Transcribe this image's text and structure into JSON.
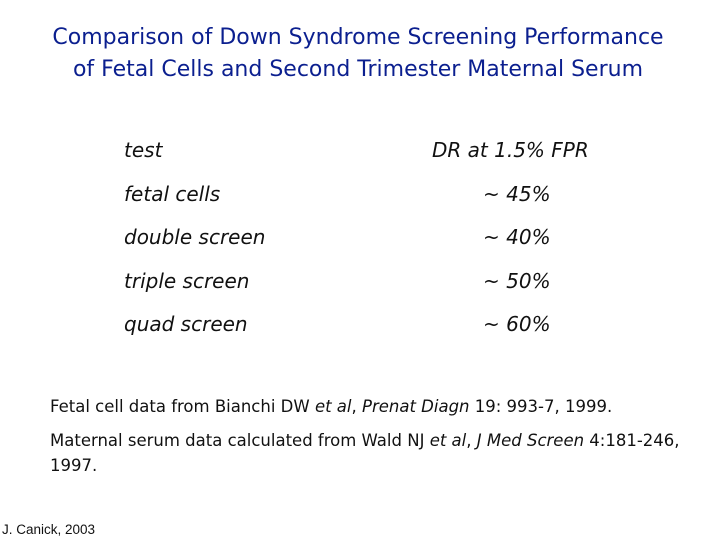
{
  "title": {
    "line1": "Comparison of Down Syndrome Screening Performance",
    "line2": "of Fetal Cells and Second Trimester Maternal Serum"
  },
  "table": {
    "headers": [
      "test",
      "DR at 1.5% FPR"
    ],
    "rows": [
      {
        "test": "fetal cells",
        "dr": "~ 45%"
      },
      {
        "test": "double screen",
        "dr": "~ 40%"
      },
      {
        "test": "triple screen",
        "dr": "~ 50%"
      },
      {
        "test": "quad screen",
        "dr": "~ 60%"
      }
    ]
  },
  "notes": {
    "fetal": {
      "pre": "Fetal cell data from Bianchi DW ",
      "etal": "et al",
      "mid": ", ",
      "journal": "Prenat Diagn",
      "post": " 19: 993-7, 1999."
    },
    "serum": {
      "pre": "Maternal serum data calculated from Wald NJ ",
      "etal": "et al",
      "mid": ", ",
      "journal": "J Med Screen",
      "post": " 4:181-246, 1997."
    }
  },
  "credit": "J. Canick, 2003"
}
